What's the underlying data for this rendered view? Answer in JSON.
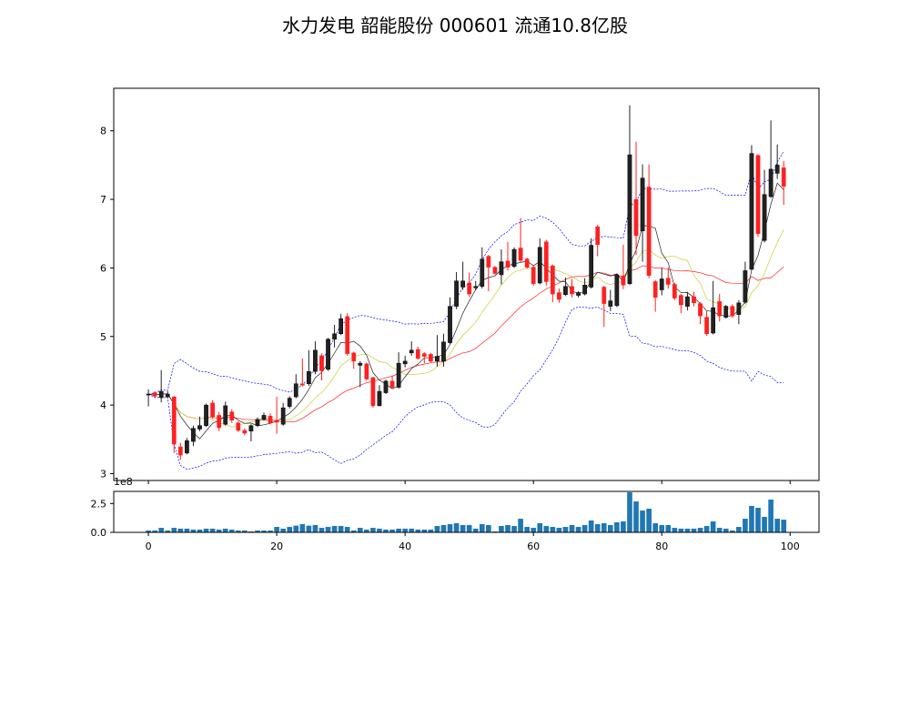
{
  "title": "水力发电 韶能股份 000601 流通10.8亿股",
  "chart_data": [
    {
      "type": "candlestick",
      "panel": "price",
      "xlim": [
        -5.4,
        104.5
      ],
      "ylim": [
        2.9,
        8.62
      ],
      "xticks": [
        0,
        20,
        40,
        60,
        80,
        100
      ],
      "yticks": [
        "3",
        "4",
        "5",
        "6",
        "7",
        "8"
      ],
      "colors": {
        "up": "#222222",
        "down": "#ff2020",
        "ma_short": "#222222",
        "ma_mid": "#cccc33",
        "ma_long": "#ff2020",
        "bollinger": "#0000ff"
      },
      "open": [
        4.15,
        4.18,
        4.11,
        4.12,
        4.12,
        3.39,
        3.3,
        3.47,
        3.65,
        3.7,
        4.03,
        3.85,
        3.72,
        3.9,
        3.74,
        3.63,
        3.62,
        3.7,
        3.79,
        3.84,
        3.78,
        3.72,
        3.98,
        4.12,
        4.31,
        4.31,
        4.49,
        4.72,
        4.52,
        4.96,
        5.04,
        5.29,
        4.76,
        4.58,
        4.6,
        4.4,
        3.99,
        4.18,
        4.35,
        4.26,
        4.6,
        4.76,
        4.81,
        4.75,
        4.74,
        4.64,
        4.64,
        4.91,
        5.44,
        5.72,
        5.78,
        5.71,
        5.73,
        6.17,
        6.01,
        5.9,
        6.1,
        6.02,
        6.29,
        6.13,
        6.01,
        5.78,
        6.38,
        6.03,
        5.64,
        5.61,
        5.73,
        5.6,
        5.62,
        5.72,
        6.6,
        5.72,
        5.44,
        5.45,
        5.88,
        5.77,
        7.0,
        6.54,
        7.18,
        5.8,
        5.68,
        5.85,
        5.76,
        5.6,
        5.44,
        5.58,
        5.48,
        5.28,
        5.05,
        5.51,
        5.28,
        5.44,
        5.32,
        5.5,
        5.98,
        7.64,
        6.4,
        7.04,
        7.38,
        7.46
      ],
      "high": [
        4.23,
        4.2,
        4.51,
        4.2,
        4.13,
        3.45,
        3.52,
        3.7,
        3.83,
        4.02,
        4.07,
        3.9,
        4.05,
        3.94,
        3.76,
        3.66,
        3.72,
        3.82,
        3.89,
        3.88,
        4.12,
        4.03,
        4.13,
        4.45,
        4.68,
        4.8,
        4.93,
        4.75,
        4.98,
        5.17,
        5.33,
        5.34,
        4.78,
        4.64,
        4.62,
        4.41,
        4.29,
        4.37,
        4.43,
        4.77,
        4.72,
        4.93,
        4.85,
        4.77,
        4.76,
        5.02,
        5.04,
        5.57,
        5.94,
        6.09,
        5.93,
        5.81,
        6.3,
        6.19,
        6.03,
        6.27,
        6.38,
        6.3,
        6.73,
        6.15,
        6.03,
        6.43,
        6.41,
        6.05,
        5.7,
        5.86,
        5.84,
        5.66,
        5.85,
        6.43,
        6.63,
        5.74,
        5.68,
        5.92,
        6.34,
        8.37,
        7.84,
        7.51,
        7.51,
        5.82,
        6.0,
        6.01,
        5.78,
        5.62,
        5.65,
        5.65,
        5.5,
        5.37,
        5.81,
        5.62,
        5.46,
        5.47,
        5.53,
        6.09,
        7.79,
        7.66,
        7.43,
        8.15,
        7.8,
        7.56
      ],
      "low": [
        3.98,
        4.1,
        4.04,
        4.1,
        3.3,
        3.2,
        3.28,
        3.4,
        3.62,
        3.68,
        3.8,
        3.62,
        3.7,
        3.74,
        3.61,
        3.56,
        3.47,
        3.68,
        3.77,
        3.72,
        3.58,
        3.7,
        3.95,
        4.1,
        4.27,
        4.28,
        4.45,
        4.36,
        4.5,
        4.84,
        5.02,
        4.72,
        4.53,
        4.26,
        4.36,
        3.96,
        3.98,
        4.16,
        4.24,
        4.24,
        4.55,
        4.72,
        4.66,
        4.61,
        4.62,
        4.56,
        4.56,
        4.89,
        5.4,
        5.68,
        5.58,
        5.68,
        5.7,
        5.66,
        5.9,
        5.76,
        5.96,
        6.0,
        6.08,
        5.99,
        5.74,
        5.76,
        5.74,
        5.5,
        5.49,
        5.59,
        5.57,
        5.57,
        5.6,
        5.7,
        6.17,
        5.14,
        5.37,
        5.43,
        5.69,
        5.75,
        6.19,
        6.09,
        5.85,
        5.36,
        5.6,
        5.7,
        5.53,
        5.34,
        5.38,
        5.44,
        5.18,
        5.01,
        5.03,
        5.22,
        5.26,
        5.27,
        5.18,
        5.48,
        5.96,
        6.45,
        6.37,
        7.02,
        7.3,
        6.92
      ],
      "close": [
        4.16,
        4.13,
        4.2,
        4.16,
        3.43,
        3.27,
        3.48,
        3.66,
        3.7,
        4.0,
        3.83,
        3.67,
        3.99,
        3.78,
        3.63,
        3.59,
        3.7,
        3.79,
        3.85,
        3.74,
        3.75,
        3.96,
        4.1,
        4.31,
        4.29,
        4.49,
        4.8,
        4.5,
        4.96,
        5.04,
        5.26,
        4.75,
        4.64,
        4.61,
        4.38,
        3.99,
        4.2,
        4.35,
        4.26,
        4.61,
        4.64,
        4.8,
        4.68,
        4.71,
        4.64,
        4.71,
        4.92,
        5.44,
        5.81,
        5.81,
        5.62,
        5.73,
        6.13,
        6.01,
        5.92,
        6.09,
        6.01,
        6.27,
        6.11,
        6.01,
        5.77,
        6.3,
        5.8,
        5.62,
        5.54,
        5.73,
        5.62,
        5.64,
        5.75,
        6.33,
        6.34,
        5.48,
        5.52,
        5.9,
        5.75,
        7.65,
        6.47,
        7.31,
        5.89,
        5.57,
        5.84,
        5.76,
        5.56,
        5.46,
        5.58,
        5.49,
        5.3,
        5.04,
        5.42,
        5.3,
        5.44,
        5.3,
        5.49,
        5.96,
        7.67,
        6.5,
        7.07,
        7.44,
        7.5,
        7.19
      ]
    },
    {
      "type": "bar",
      "panel": "volume",
      "offset_label": "1e8",
      "xlim": [
        -5.4,
        104.5
      ],
      "ylim": [
        0,
        3.55
      ],
      "xticks": [
        "0",
        "20",
        "40",
        "60",
        "80",
        "100"
      ],
      "yticks": [
        "0.0",
        "2.5"
      ],
      "color": "#1f77b4",
      "values": [
        0.16,
        0.16,
        0.39,
        0.16,
        0.39,
        0.32,
        0.32,
        0.24,
        0.24,
        0.32,
        0.32,
        0.24,
        0.32,
        0.24,
        0.16,
        0.16,
        0.08,
        0.16,
        0.16,
        0.16,
        0.47,
        0.32,
        0.47,
        0.58,
        0.71,
        0.58,
        0.63,
        0.39,
        0.47,
        0.55,
        0.55,
        0.47,
        0.16,
        0.39,
        0.24,
        0.39,
        0.32,
        0.24,
        0.24,
        0.32,
        0.32,
        0.32,
        0.24,
        0.24,
        0.24,
        0.55,
        0.63,
        0.71,
        0.79,
        0.63,
        0.63,
        0.32,
        0.71,
        0.63,
        0.08,
        0.55,
        0.63,
        0.55,
        1.18,
        0.47,
        0.39,
        0.79,
        0.55,
        0.47,
        0.39,
        0.47,
        0.63,
        0.47,
        0.63,
        1.03,
        0.71,
        0.79,
        0.63,
        0.87,
        0.95,
        3.47,
        2.68,
        1.89,
        2.05,
        0.79,
        0.63,
        0.63,
        0.39,
        0.32,
        0.32,
        0.32,
        0.39,
        0.55,
        0.95,
        0.39,
        0.32,
        0.16,
        0.47,
        1.18,
        2.29,
        2.13,
        1.34,
        2.84,
        1.18,
        1.1
      ]
    }
  ]
}
